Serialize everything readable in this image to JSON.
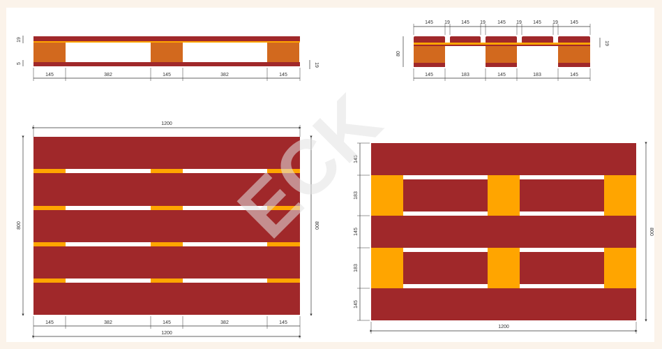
{
  "colors": {
    "background": "#fbf3ea",
    "panel": "#ffffff",
    "board": "#a0282a",
    "block": "#d2691e",
    "block_light": "#ffa500",
    "dim_line": "#333333",
    "watermark": "#e2e2e2"
  },
  "watermark": "ECK",
  "side_view_left": {
    "board_thickness": "19",
    "gap": "5",
    "right_mark": "19",
    "bottom_dims": [
      "145",
      "382",
      "145",
      "382",
      "145"
    ]
  },
  "side_view_right": {
    "top_dims": [
      "145",
      "19",
      "145",
      "19",
      "145",
      "19",
      "145",
      "19",
      "145"
    ],
    "height": "80",
    "right_mark": "19",
    "bottom_dims": [
      "145",
      "183",
      "145",
      "183",
      "145"
    ]
  },
  "top_view_left": {
    "width_top": "1200",
    "height_left": "800",
    "height_right": "800",
    "bottom_dims": [
      "145",
      "382",
      "145",
      "382",
      "145"
    ],
    "width_bottom": "1200"
  },
  "top_view_right": {
    "left_dims": [
      "145",
      "183",
      "145",
      "183",
      "145"
    ],
    "height_right": "800",
    "width_bottom": "1200"
  }
}
